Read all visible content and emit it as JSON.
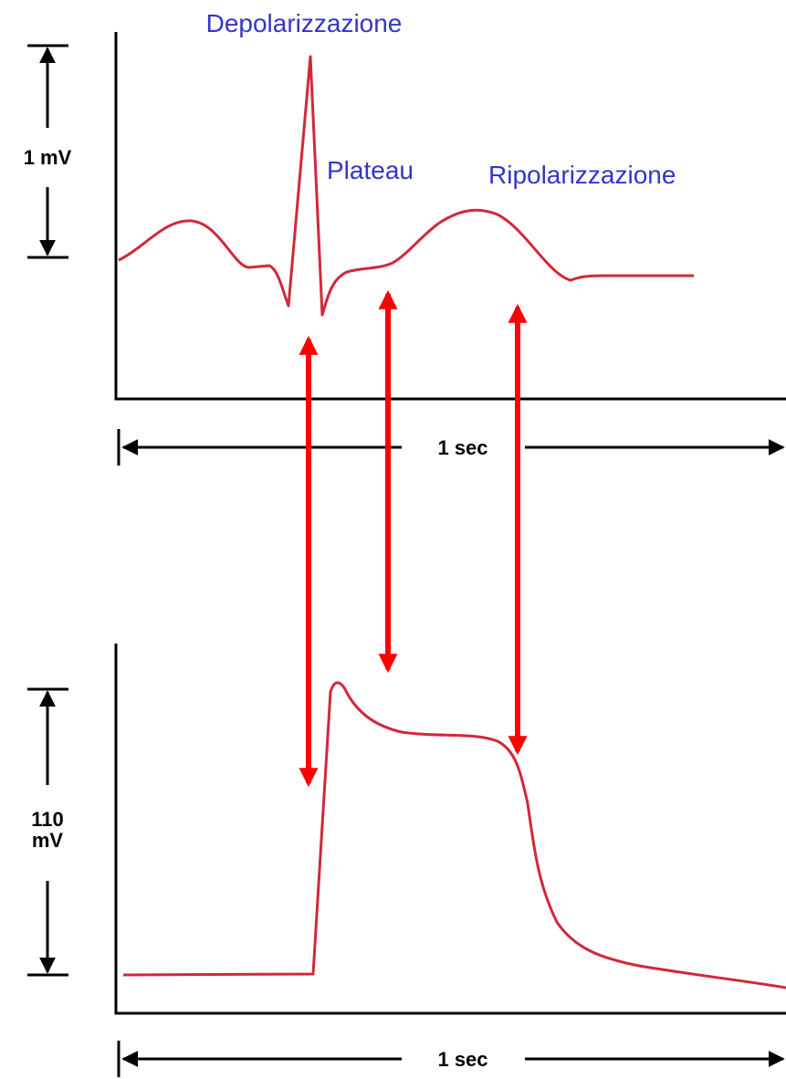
{
  "ecg": {
    "labels": {
      "depolarization": "Depolarizzazione",
      "plateau": "Plateau",
      "repolarization": "Ripolarizzazione"
    },
    "amplitude_scale": "1 mV",
    "time_scale": "1 sec"
  },
  "action_potential": {
    "amplitude_scale": [
      "110",
      "mV"
    ],
    "time_scale": "1 sec"
  }
}
